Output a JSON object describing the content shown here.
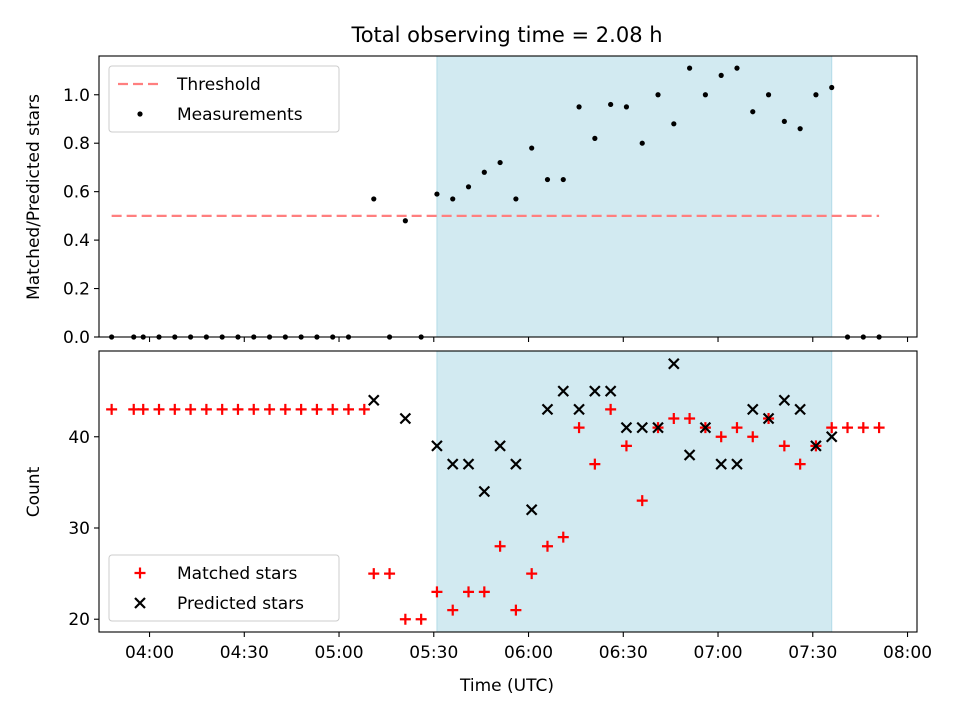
{
  "chart_data": [
    {
      "type": "scatter",
      "title": "Total observing time = 2.08 h",
      "xlabel": "",
      "ylabel": "Matched/Predicted stars",
      "xlim": [
        "03:44",
        "08:03"
      ],
      "ylim": [
        0,
        1.16
      ],
      "y_ticks": [
        "0.0",
        "0.2",
        "0.4",
        "0.6",
        "0.8",
        "1.0"
      ],
      "shaded_interval": [
        "05:31",
        "07:36"
      ],
      "shade_color": "#add8e6",
      "legend_position": "upper left",
      "grid": false,
      "series": [
        {
          "name": "Threshold",
          "style": "dashed-line",
          "color": "#ff7f7f",
          "x": [
            "03:48",
            "07:51"
          ],
          "y": [
            0.5,
            0.5
          ]
        },
        {
          "name": "Measurements",
          "style": "dot",
          "color": "#000000",
          "points": [
            [
              "03:48",
              0.0
            ],
            [
              "03:55",
              0.0
            ],
            [
              "03:58",
              0.0
            ],
            [
              "04:03",
              0.0
            ],
            [
              "04:08",
              0.0
            ],
            [
              "04:13",
              0.0
            ],
            [
              "04:18",
              0.0
            ],
            [
              "04:23",
              0.0
            ],
            [
              "04:28",
              0.0
            ],
            [
              "04:33",
              0.0
            ],
            [
              "04:38",
              0.0
            ],
            [
              "04:43",
              0.0
            ],
            [
              "04:48",
              0.0
            ],
            [
              "04:53",
              0.0
            ],
            [
              "04:58",
              0.0
            ],
            [
              "05:03",
              0.0
            ],
            [
              "05:11",
              0.57
            ],
            [
              "05:16",
              0.0
            ],
            [
              "05:21",
              0.48
            ],
            [
              "05:26",
              0.0
            ],
            [
              "05:31",
              0.59
            ],
            [
              "05:36",
              0.57
            ],
            [
              "05:41",
              0.62
            ],
            [
              "05:46",
              0.68
            ],
            [
              "05:51",
              0.72
            ],
            [
              "05:56",
              0.57
            ],
            [
              "06:01",
              0.78
            ],
            [
              "06:06",
              0.65
            ],
            [
              "06:11",
              0.65
            ],
            [
              "06:16",
              0.95
            ],
            [
              "06:21",
              0.82
            ],
            [
              "06:26",
              0.96
            ],
            [
              "06:31",
              0.95
            ],
            [
              "06:36",
              0.8
            ],
            [
              "06:41",
              1.0
            ],
            [
              "06:46",
              0.88
            ],
            [
              "06:51",
              1.11
            ],
            [
              "06:56",
              1.0
            ],
            [
              "07:01",
              1.08
            ],
            [
              "07:06",
              1.11
            ],
            [
              "07:11",
              0.93
            ],
            [
              "07:16",
              1.0
            ],
            [
              "07:21",
              0.89
            ],
            [
              "07:26",
              0.86
            ],
            [
              "07:31",
              1.0
            ],
            [
              "07:36",
              1.03
            ],
            [
              "07:41",
              0.0
            ],
            [
              "07:46",
              0.0
            ],
            [
              "07:51",
              0.0
            ]
          ]
        }
      ]
    },
    {
      "type": "scatter",
      "title": "",
      "xlabel": "Time (UTC)",
      "ylabel": "Count",
      "xlim": [
        "03:44",
        "08:03"
      ],
      "ylim": [
        18.6,
        49.4
      ],
      "x_ticks": [
        "04:00",
        "04:30",
        "05:00",
        "05:30",
        "06:00",
        "06:30",
        "07:00",
        "07:30",
        "08:00"
      ],
      "y_ticks": [
        "20",
        "30",
        "40"
      ],
      "shaded_interval": [
        "05:31",
        "07:36"
      ],
      "shade_color": "#add8e6",
      "legend_position": "lower left",
      "grid": false,
      "series": [
        {
          "name": "Matched stars",
          "marker": "plus",
          "color": "#ff0000",
          "points": [
            [
              "03:48",
              43
            ],
            [
              "03:55",
              43
            ],
            [
              "03:58",
              43
            ],
            [
              "04:03",
              43
            ],
            [
              "04:08",
              43
            ],
            [
              "04:13",
              43
            ],
            [
              "04:18",
              43
            ],
            [
              "04:23",
              43
            ],
            [
              "04:28",
              43
            ],
            [
              "04:33",
              43
            ],
            [
              "04:38",
              43
            ],
            [
              "04:43",
              43
            ],
            [
              "04:48",
              43
            ],
            [
              "04:53",
              43
            ],
            [
              "04:58",
              43
            ],
            [
              "05:03",
              43
            ],
            [
              "05:08",
              43
            ],
            [
              "05:11",
              25
            ],
            [
              "05:16",
              25
            ],
            [
              "05:21",
              20
            ],
            [
              "05:26",
              20
            ],
            [
              "05:31",
              23
            ],
            [
              "05:36",
              21
            ],
            [
              "05:41",
              23
            ],
            [
              "05:46",
              23
            ],
            [
              "05:51",
              28
            ],
            [
              "05:56",
              21
            ],
            [
              "06:01",
              25
            ],
            [
              "06:06",
              28
            ],
            [
              "06:11",
              29
            ],
            [
              "06:16",
              41
            ],
            [
              "06:21",
              37
            ],
            [
              "06:26",
              43
            ],
            [
              "06:31",
              39
            ],
            [
              "06:36",
              33
            ],
            [
              "06:41",
              41
            ],
            [
              "06:46",
              42
            ],
            [
              "06:51",
              42
            ],
            [
              "06:56",
              41
            ],
            [
              "07:01",
              40
            ],
            [
              "07:06",
              41
            ],
            [
              "07:11",
              40
            ],
            [
              "07:16",
              42
            ],
            [
              "07:21",
              39
            ],
            [
              "07:26",
              37
            ],
            [
              "07:31",
              39
            ],
            [
              "07:36",
              41
            ],
            [
              "07:41",
              41
            ],
            [
              "07:46",
              41
            ],
            [
              "07:51",
              41
            ]
          ]
        },
        {
          "name": "Predicted stars",
          "marker": "x",
          "color": "#000000",
          "points": [
            [
              "05:11",
              44
            ],
            [
              "05:21",
              42
            ],
            [
              "05:31",
              39
            ],
            [
              "05:36",
              37
            ],
            [
              "05:41",
              37
            ],
            [
              "05:46",
              34
            ],
            [
              "05:51",
              39
            ],
            [
              "05:56",
              37
            ],
            [
              "06:01",
              32
            ],
            [
              "06:06",
              43
            ],
            [
              "06:11",
              45
            ],
            [
              "06:16",
              43
            ],
            [
              "06:21",
              45
            ],
            [
              "06:26",
              45
            ],
            [
              "06:31",
              41
            ],
            [
              "06:36",
              41
            ],
            [
              "06:41",
              41
            ],
            [
              "06:46",
              48
            ],
            [
              "06:51",
              38
            ],
            [
              "06:56",
              41
            ],
            [
              "07:01",
              37
            ],
            [
              "07:06",
              37
            ],
            [
              "07:11",
              43
            ],
            [
              "07:16",
              42
            ],
            [
              "07:21",
              44
            ],
            [
              "07:26",
              43
            ],
            [
              "07:31",
              39
            ],
            [
              "07:36",
              40
            ]
          ]
        }
      ]
    }
  ]
}
